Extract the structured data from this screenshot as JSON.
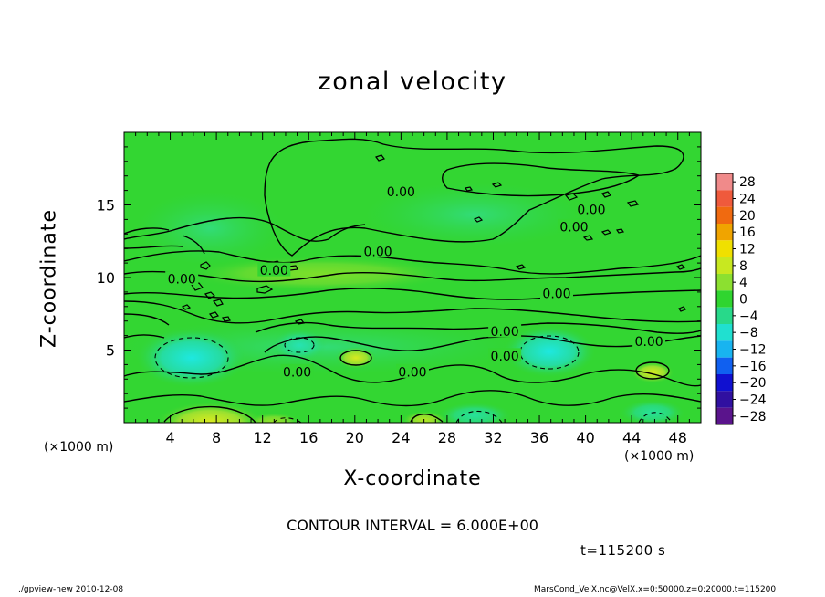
{
  "chart_data": {
    "type": "heatmap",
    "title": "zonal velocity",
    "xlabel": "X-coordinate",
    "ylabel": "Z-coordinate",
    "x_unit_label": "(×1000 m)",
    "x_ticks": [
      4,
      8,
      12,
      16,
      20,
      24,
      28,
      32,
      36,
      40,
      44,
      48
    ],
    "y_ticks": [
      5,
      10,
      15
    ],
    "xlim": [
      0,
      50
    ],
    "ylim": [
      0,
      20
    ],
    "colorbar_levels": [
      28,
      24,
      20,
      16,
      12,
      8,
      4,
      0,
      -4,
      -8,
      -12,
      -16,
      -20,
      -24,
      -28
    ],
    "colorbar_colors": [
      "#f08a8a",
      "#ef5a3c",
      "#f06a10",
      "#f0a400",
      "#f0e000",
      "#c8e820",
      "#8ce030",
      "#2fd52f",
      "#28d98a",
      "#20e0d0",
      "#18b4f0",
      "#1060f0",
      "#1010d0",
      "#3010a0",
      "#5a148c"
    ],
    "contour_labels": [
      {
        "text": "0.00",
        "x": 24,
        "y": 15.9
      },
      {
        "text": "0.00",
        "x": 40.5,
        "y": 14.7
      },
      {
        "text": "0.00",
        "x": 39,
        "y": 13.5
      },
      {
        "text": "0.00",
        "x": 22,
        "y": 11.8
      },
      {
        "text": "0.00",
        "x": 13,
        "y": 10.5
      },
      {
        "text": "0.00",
        "x": 5,
        "y": 9.9
      },
      {
        "text": "0.00",
        "x": 37.5,
        "y": 8.9
      },
      {
        "text": "0.00",
        "x": 33,
        "y": 6.3
      },
      {
        "text": "0.00",
        "x": 45.5,
        "y": 5.6
      },
      {
        "text": "0.00",
        "x": 33,
        "y": 4.6
      },
      {
        "text": "0.00",
        "x": 15,
        "y": 3.5
      },
      {
        "text": "0.00",
        "x": 25,
        "y": 3.5
      }
    ],
    "contour_interval_text": "CONTOUR INTERVAL = 6.000E+00",
    "time_text": "t=115200 s"
  },
  "footer": {
    "left": "./gpview-new  2010-12-08",
    "right": "MarsCond_VelX.nc@VelX,x=0:50000,z=0:20000,t=115200"
  }
}
